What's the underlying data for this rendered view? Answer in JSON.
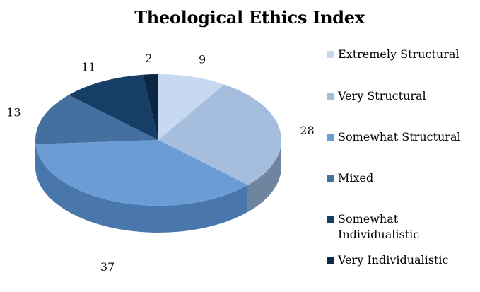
{
  "chart_data": {
    "type": "pie",
    "style": "3d",
    "title": "Theological Ethics Index",
    "legend_position": "right",
    "categories": [
      "Extremely Structural",
      "Very Structural",
      "Somewhat Structural",
      "Mixed",
      "Somewhat Individualistic",
      "Very Individualistic"
    ],
    "values": [
      9,
      28,
      37,
      13,
      11,
      2
    ],
    "data_labels": [
      "9",
      "28",
      "37",
      "13",
      "11",
      "2"
    ],
    "colors": [
      "#c6d9f1",
      "#a5bedd",
      "#6a9cd6",
      "#43709f",
      "#173e66",
      "#0c2743"
    ],
    "side_colors": [
      "#8ea3bd",
      "#6f859f",
      "#4a77ab",
      "#2e5175",
      "#0f2c49",
      "#081c30"
    ]
  }
}
